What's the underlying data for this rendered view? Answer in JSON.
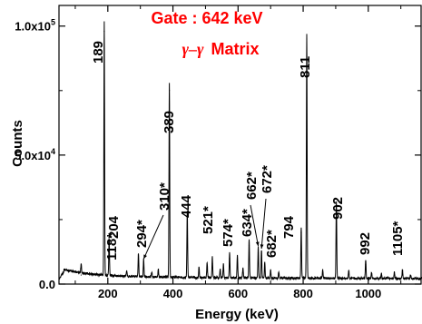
{
  "chart_data": {
    "type": "line",
    "title": "Gate : 642 keV",
    "subtitle_symbol": "γ–γ",
    "subtitle_text": "Matrix",
    "xlabel": "Energy (keV)",
    "ylabel": "Counts",
    "xlim": [
      50,
      1165
    ],
    "ylim": [
      0,
      108000
    ],
    "x_ticks": [
      200,
      400,
      600,
      800,
      1000
    ],
    "x_tick_labels": [
      "200",
      "400",
      "600",
      "800",
      "1000"
    ],
    "y_ticks": [
      0,
      50000,
      100000
    ],
    "y_tick_labels": [
      {
        "base": "0.0",
        "exp": ""
      },
      {
        "base": "5.0x10",
        "exp": "4"
      },
      {
        "base": "1.0x10",
        "exp": "5"
      }
    ],
    "peaks": [
      {
        "x": 118,
        "y": 3500,
        "label": "118*"
      },
      {
        "x": 189,
        "y": 98000,
        "label": "189"
      },
      {
        "x": 204,
        "y": 14500,
        "label": "204"
      },
      {
        "x": 294,
        "y": 9000,
        "label": "294*"
      },
      {
        "x": 310,
        "y": 7000,
        "label": "310*"
      },
      {
        "x": 389,
        "y": 75000,
        "label": "389"
      },
      {
        "x": 444,
        "y": 26000,
        "label": "444"
      },
      {
        "x": 521,
        "y": 8000,
        "label": "521*"
      },
      {
        "x": 574,
        "y": 10000,
        "label": "574*"
      },
      {
        "x": 634,
        "y": 15000,
        "label": "634*"
      },
      {
        "x": 662,
        "y": 12000,
        "label": "662*"
      },
      {
        "x": 672,
        "y": 11000,
        "label": "672*"
      },
      {
        "x": 682,
        "y": 6000,
        "label": "682*"
      },
      {
        "x": 794,
        "y": 20000,
        "label": "794"
      },
      {
        "x": 811,
        "y": 95000,
        "label": "811"
      },
      {
        "x": 902,
        "y": 30000,
        "label": "902"
      },
      {
        "x": 992,
        "y": 7500,
        "label": "992"
      },
      {
        "x": 1105,
        "y": 3500,
        "label": "1105*"
      }
    ],
    "minor_peaks": [
      {
        "x": 258,
        "y": 2500
      },
      {
        "x": 335,
        "y": 2000
      },
      {
        "x": 355,
        "y": 3000
      },
      {
        "x": 480,
        "y": 4000
      },
      {
        "x": 505,
        "y": 6000
      },
      {
        "x": 545,
        "y": 3500
      },
      {
        "x": 555,
        "y": 5500
      },
      {
        "x": 598,
        "y": 9000
      },
      {
        "x": 615,
        "y": 4000
      },
      {
        "x": 700,
        "y": 3000
      },
      {
        "x": 725,
        "y": 2500
      },
      {
        "x": 860,
        "y": 3500
      },
      {
        "x": 940,
        "y": 3000
      },
      {
        "x": 1010,
        "y": 2500
      },
      {
        "x": 1040,
        "y": 2000
      },
      {
        "x": 1080,
        "y": 2500
      },
      {
        "x": 1130,
        "y": 1500
      }
    ],
    "colors": {
      "spectrum": "#000000",
      "title": "#ff0000"
    }
  }
}
